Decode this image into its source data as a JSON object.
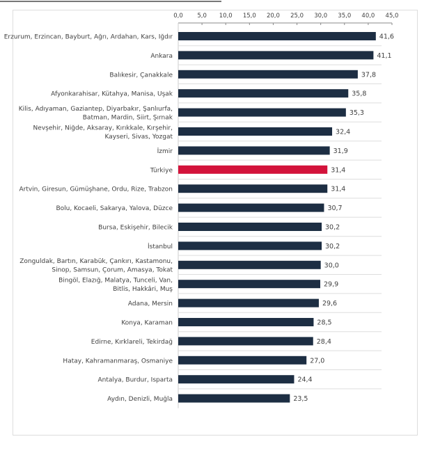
{
  "chart_data": {
    "type": "bar",
    "orientation": "horizontal",
    "title": "",
    "xlabel": "",
    "ylabel": "",
    "xlim": [
      0,
      45
    ],
    "ticks": [
      "0,0",
      "5,0",
      "10,0",
      "15,0",
      "20,0",
      "25,0",
      "30,0",
      "35,0",
      "40,0",
      "45,0"
    ],
    "tick_values": [
      0,
      5,
      10,
      15,
      20,
      25,
      30,
      35,
      40,
      45
    ],
    "colors": {
      "default": "#1d2e43",
      "highlight": "#d3133b"
    },
    "categories": [
      [
        "Erzurum, Erzincan, Bayburt, Ağrı, Ardahan, Kars, Iğdır"
      ],
      [
        "Ankara"
      ],
      [
        "Balıkesir, Çanakkale"
      ],
      [
        "Afyonkarahisar, Kütahya, Manisa, Uşak"
      ],
      [
        "Kilis, Adıyaman, Gaziantep, Diyarbakır, Şanlıurfa,",
        "Batman, Mardin, Siirt, Şırnak"
      ],
      [
        "Nevşehir, Niğde, Aksaray, Kırıkkale, Kırşehir,",
        "Kayseri, Sivas, Yozgat"
      ],
      [
        "İzmir"
      ],
      [
        "Türkiye"
      ],
      [
        "Artvin, Giresun, Gümüşhane, Ordu, Rize, Trabzon"
      ],
      [
        "Bolu, Kocaeli, Sakarya, Yalova, Düzce"
      ],
      [
        "Bursa, Eskişehir, Bilecik"
      ],
      [
        "İstanbul"
      ],
      [
        "Zonguldak, Bartın, Karabük, Çankırı, Kastamonu,",
        "Sinop, Samsun, Çorum, Amasya, Tokat"
      ],
      [
        "Bingöl, Elazığ, Malatya, Tunceli, Van,",
        "Bitlis, Hakkâri, Muş"
      ],
      [
        "Adana, Mersin"
      ],
      [
        "Konya, Karaman"
      ],
      [
        "Edirne, Kırklareli, Tekirdağ"
      ],
      [
        "Hatay, Kahramanmaraş, Osmaniye"
      ],
      [
        "Antalya, Burdur, Isparta"
      ],
      [
        "Aydın, Denizli, Muğla"
      ]
    ],
    "values": [
      41.6,
      41.1,
      37.8,
      35.8,
      35.3,
      32.4,
      31.9,
      31.4,
      31.4,
      30.7,
      30.2,
      30.2,
      30.0,
      29.9,
      29.6,
      28.5,
      28.4,
      27.0,
      24.4,
      23.5
    ],
    "value_labels": [
      "41,6",
      "41,1",
      "37,8",
      "35,8",
      "35,3",
      "32,4",
      "31,9",
      "31,4",
      "31,4",
      "30,7",
      "30,2",
      "30,2",
      "30,0",
      "29,9",
      "29,6",
      "28,5",
      "28,4",
      "27,0",
      "24,4",
      "23,5"
    ],
    "highlight_index": 7
  }
}
